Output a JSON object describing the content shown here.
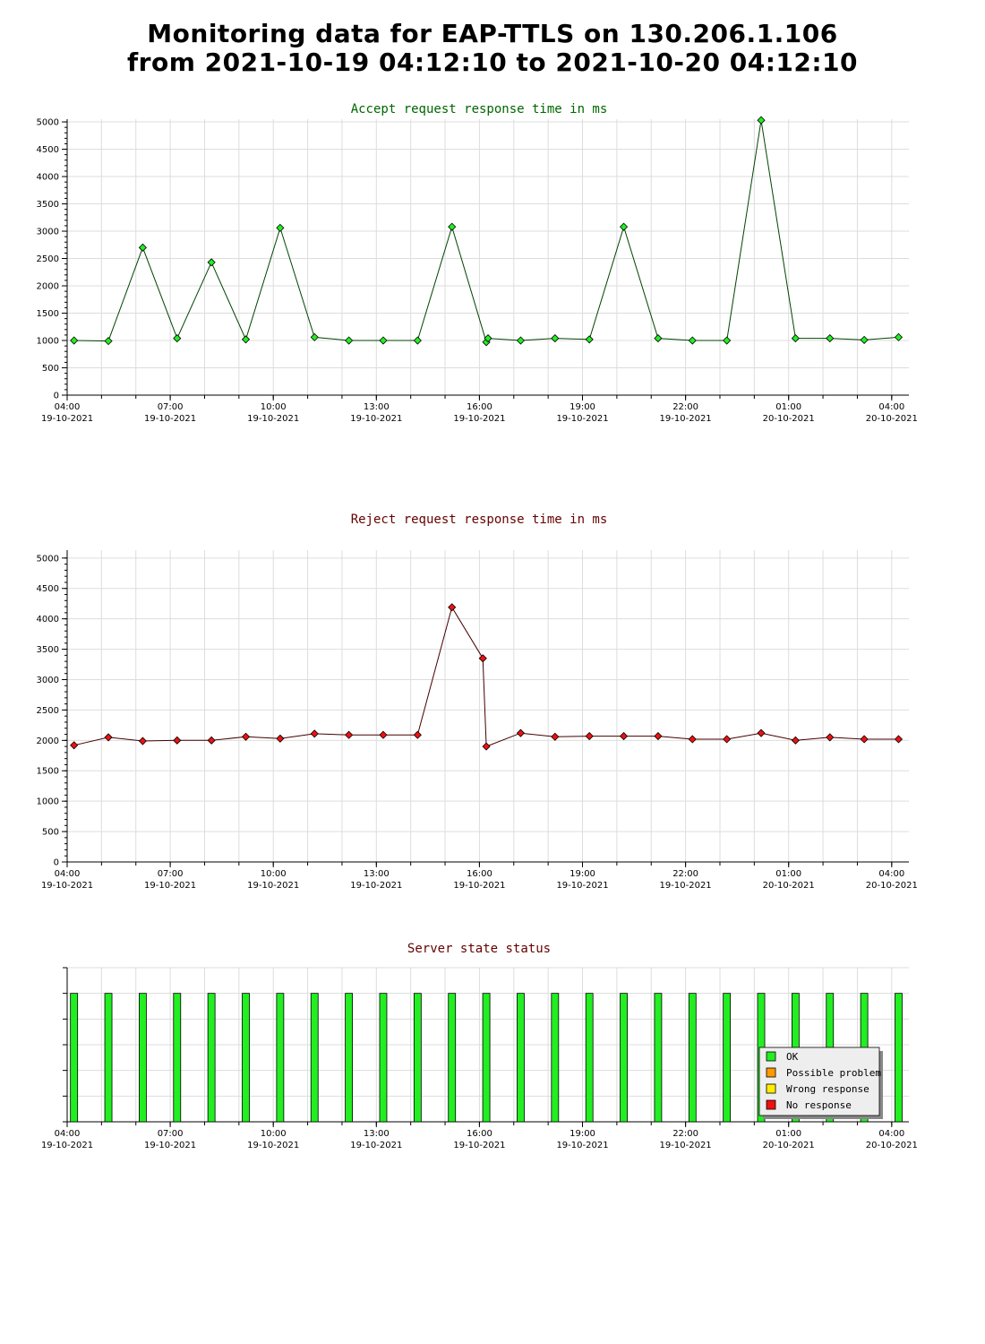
{
  "page": {
    "title_line1": "Monitoring data for EAP-TTLS on 130.206.1.106",
    "title_line2": "from 2021-10-19 04:12:10 to 2021-10-20 04:12:10"
  },
  "x_ticks": [
    {
      "time": "04:00",
      "date": "19-10-2021",
      "h": 0
    },
    {
      "time": "07:00",
      "date": "19-10-2021",
      "h": 3
    },
    {
      "time": "10:00",
      "date": "19-10-2021",
      "h": 6
    },
    {
      "time": "13:00",
      "date": "19-10-2021",
      "h": 9
    },
    {
      "time": "16:00",
      "date": "19-10-2021",
      "h": 12
    },
    {
      "time": "19:00",
      "date": "19-10-2021",
      "h": 15
    },
    {
      "time": "22:00",
      "date": "19-10-2021",
      "h": 18
    },
    {
      "time": "01:00",
      "date": "20-10-2021",
      "h": 21
    },
    {
      "time": "04:00",
      "date": "20-10-2021",
      "h": 24
    }
  ],
  "chart_data": [
    {
      "type": "line",
      "title": "Accept request response time in ms",
      "title_color": "#006600",
      "line_color": "#004400",
      "marker_color": "#22ee22",
      "ylim": [
        0,
        5000
      ],
      "yticks": [
        0,
        500,
        1000,
        1500,
        2000,
        2500,
        3000,
        3500,
        4000,
        4500,
        5000
      ],
      "grid": true,
      "x_hours": [
        0.2,
        1.2,
        2.2,
        3.2,
        4.2,
        5.2,
        6.2,
        7.2,
        8.2,
        9.2,
        10.2,
        11.2,
        12.2,
        12.25,
        13.2,
        14.2,
        15.2,
        16.2,
        17.2,
        18.2,
        19.2,
        20.2,
        21.2,
        22.2,
        23.2,
        24.2
      ],
      "values": [
        1000,
        990,
        2700,
        1040,
        2430,
        1020,
        3060,
        1060,
        1000,
        1000,
        1000,
        3080,
        970,
        1040,
        1000,
        1040,
        1020,
        3080,
        1040,
        1000,
        1000,
        5030,
        1040,
        1040,
        1010,
        1060
      ]
    },
    {
      "type": "line",
      "title": "Reject request response time in ms",
      "title_color": "#660000",
      "line_color": "#440000",
      "marker_color": "#ee1111",
      "ylim": [
        0,
        5000
      ],
      "yticks": [
        0,
        500,
        1000,
        1500,
        2000,
        2500,
        3000,
        3500,
        4000,
        4500,
        5000
      ],
      "grid": true,
      "x_hours": [
        0.2,
        1.2,
        2.2,
        3.2,
        4.2,
        5.2,
        6.2,
        7.2,
        8.2,
        9.2,
        10.2,
        11.2,
        12.1,
        12.2,
        13.2,
        14.2,
        15.2,
        16.2,
        17.2,
        18.2,
        19.2,
        20.2,
        21.2,
        22.2,
        23.2,
        24.2
      ],
      "values": [
        1920,
        2050,
        1990,
        2000,
        2000,
        2060,
        2030,
        2110,
        2090,
        2090,
        2090,
        4190,
        3350,
        1900,
        2120,
        2060,
        2070,
        2070,
        2070,
        2020,
        2020,
        2120,
        2000,
        2050,
        2020,
        2020
      ]
    },
    {
      "type": "bar",
      "title": "Server state status",
      "title_color": "#660000",
      "grid": true,
      "x_hours": [
        0.2,
        1.2,
        2.2,
        3.2,
        4.2,
        5.2,
        6.2,
        7.2,
        8.2,
        9.2,
        10.2,
        11.2,
        12.2,
        13.2,
        14.2,
        15.2,
        16.2,
        17.2,
        18.2,
        19.2,
        20.2,
        21.2,
        22.2,
        23.2,
        24.2
      ],
      "states": [
        "OK",
        "OK",
        "OK",
        "OK",
        "OK",
        "OK",
        "OK",
        "OK",
        "OK",
        "OK",
        "OK",
        "OK",
        "OK",
        "OK",
        "OK",
        "OK",
        "OK",
        "OK",
        "OK",
        "OK",
        "OK",
        "OK",
        "OK",
        "OK",
        "OK"
      ],
      "legend": [
        {
          "label": "OK",
          "color": "#22ee22"
        },
        {
          "label": "Possible problem",
          "color": "#ff9900"
        },
        {
          "label": "Wrong response",
          "color": "#ffee00"
        },
        {
          "label": "No response",
          "color": "#ee1111"
        }
      ]
    }
  ]
}
